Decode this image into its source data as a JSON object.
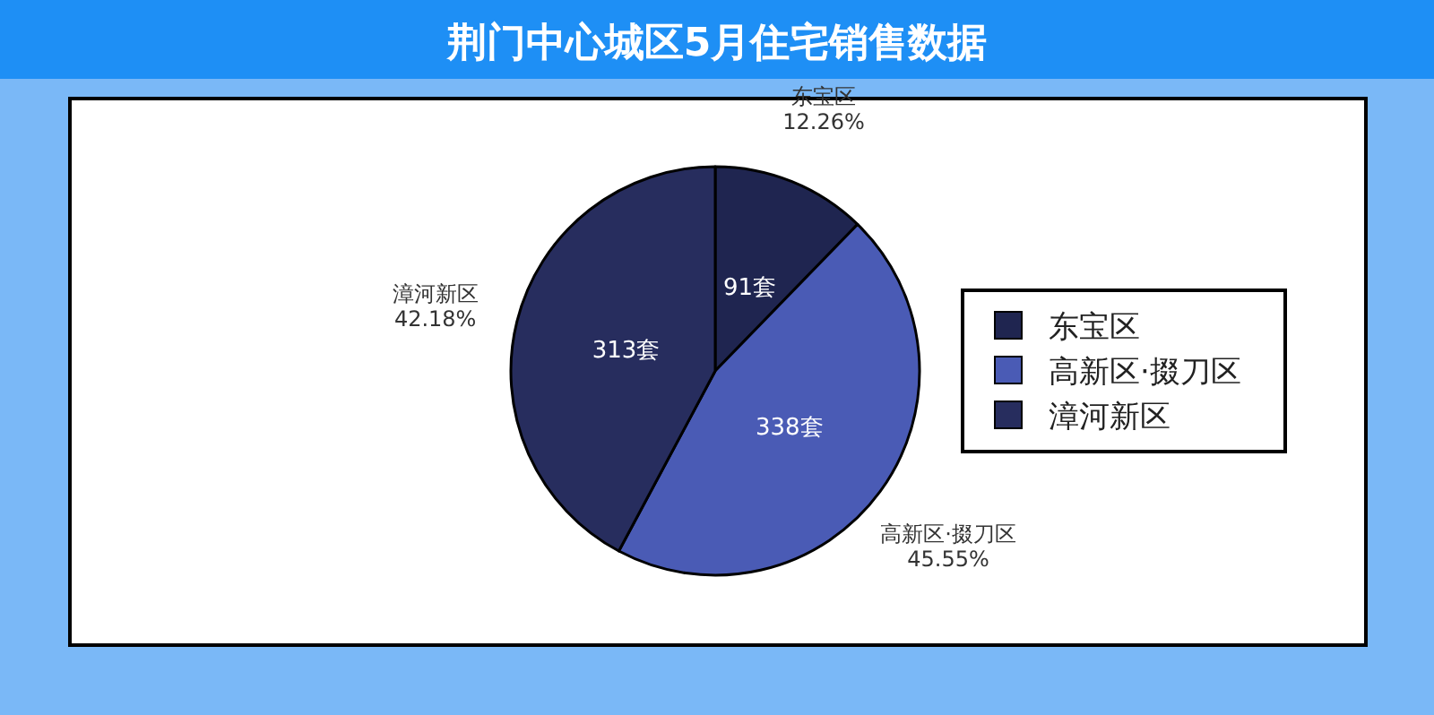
{
  "chart_data": {
    "type": "pie",
    "title": "荆门中心城区5月住宅销售数据",
    "categories": [
      "东宝区",
      "高新区·掇刀区",
      "漳河新区"
    ],
    "values": [
      91,
      338,
      313
    ],
    "colors": [
      "#1f2550",
      "#4a5bb5",
      "#272d5e"
    ],
    "value_labels": [
      "91套",
      "338套",
      "313套"
    ],
    "annotations": [
      {
        "text": "12.26%",
        "x": "东宝区"
      },
      {
        "text": "45.55%",
        "x": "高新区·掇刀区"
      },
      {
        "text": "42.18%",
        "x": "漳河新区"
      }
    ],
    "legend": "right"
  }
}
